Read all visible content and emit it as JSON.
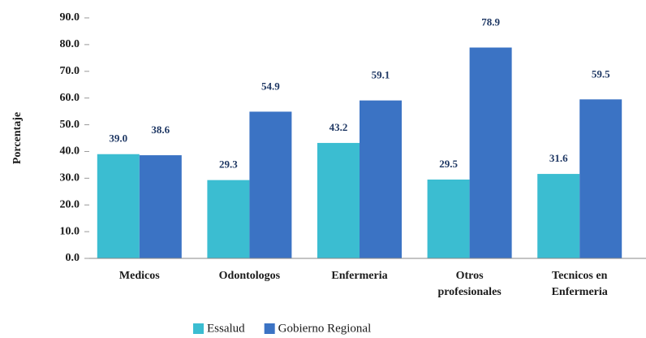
{
  "chart_data": {
    "type": "bar",
    "categories": [
      "Medicos",
      "Odontologos",
      "Enfermeria",
      "Otros profesionales",
      "Tecnicos en Enfermeria"
    ],
    "series": [
      {
        "name": "Essalud",
        "color": "#3bbdd1",
        "values": [
          39,
          29.3,
          43.2,
          29.5,
          31.6
        ],
        "value_labels": [
          "39.0",
          "29.3",
          "43.2",
          "29.5",
          "31.6"
        ]
      },
      {
        "name": "Gobierno Regional",
        "color": "#3b73c4",
        "values": [
          38.6,
          54.9,
          59.1,
          78.9,
          59.5
        ],
        "value_labels": [
          "38.6",
          "54.9",
          "59.1",
          "78.9",
          "59.5"
        ]
      }
    ],
    "y_label": "Porcentaje",
    "ylim": [
      0,
      90
    ],
    "yticks": [
      {
        "value": 0,
        "label": "0.0"
      },
      {
        "value": 10,
        "label": "10.0"
      },
      {
        "value": 20,
        "label": "20.0"
      },
      {
        "value": 30,
        "label": "30.0"
      },
      {
        "value": 40,
        "label": "40.0"
      },
      {
        "value": 50,
        "label": "50.0"
      },
      {
        "value": 60,
        "label": "60.0"
      },
      {
        "value": 70,
        "label": "70.0"
      },
      {
        "value": 80,
        "label": "80.0"
      },
      {
        "value": 90,
        "label": "90.0"
      }
    ],
    "grid": false,
    "legend": "bottom"
  }
}
